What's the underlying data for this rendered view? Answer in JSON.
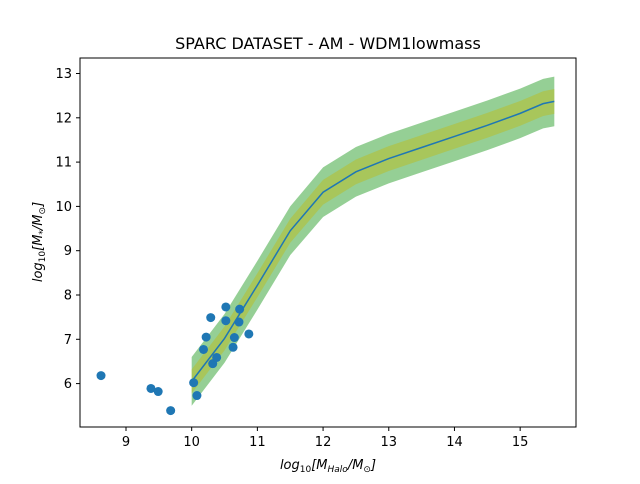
{
  "chart_data": {
    "type": "scatter",
    "title": "SPARC DATASET - AM - WDM1lowmass",
    "xlabel": {
      "prefix": "log",
      "prefix_sub": "10",
      "open": "[M",
      "num_sub": "Halo",
      "slash": "/M",
      "den_sub": "⊙",
      "close": "]"
    },
    "ylabel": {
      "prefix": "log",
      "prefix_sub": "10",
      "open": "[M",
      "num_sub": "*",
      "slash": "/M",
      "den_sub": "⊙",
      "close": "]"
    },
    "xlim": [
      8.3,
      15.85
    ],
    "ylim": [
      5.02,
      13.35
    ],
    "xticks": [
      9,
      10,
      11,
      12,
      13,
      14,
      15
    ],
    "yticks": [
      6,
      7,
      8,
      9,
      10,
      11,
      12,
      13
    ],
    "grid": false,
    "colors": {
      "points": "#1f77b4",
      "line": "#1f77b4",
      "band_outer": "#2ca02c",
      "band_inner": "#bcbd22"
    },
    "series": [
      {
        "kind": "scatter",
        "x": [
          8.62,
          9.38,
          9.49,
          9.68,
          10.03,
          10.08,
          10.18,
          10.22,
          10.29,
          10.32,
          10.38,
          10.52,
          10.52,
          10.63,
          10.65,
          10.72,
          10.73,
          10.87
        ],
        "y": [
          6.18,
          5.89,
          5.82,
          5.39,
          6.02,
          5.73,
          6.77,
          7.05,
          7.49,
          6.45,
          6.59,
          7.73,
          7.42,
          6.82,
          7.04,
          7.39,
          7.68,
          7.12
        ]
      },
      {
        "kind": "line",
        "x": [
          10.0,
          10.5,
          11.0,
          11.5,
          12.0,
          12.5,
          13.0,
          13.5,
          14.0,
          14.5,
          15.0,
          15.35,
          15.52
        ],
        "y": [
          6.05,
          7.02,
          8.22,
          9.45,
          10.32,
          10.78,
          11.08,
          11.33,
          11.58,
          11.83,
          12.1,
          12.32,
          12.37
        ],
        "band_inner": {
          "lower": [
            5.78,
            6.75,
            7.95,
            9.18,
            10.04,
            10.5,
            10.8,
            11.05,
            11.3,
            11.55,
            11.82,
            12.04,
            12.09
          ],
          "upper": [
            6.32,
            7.29,
            8.49,
            9.72,
            10.6,
            11.06,
            11.36,
            11.61,
            11.86,
            12.11,
            12.38,
            12.6,
            12.65
          ]
        },
        "band_outer": {
          "lower": [
            5.5,
            6.47,
            7.67,
            8.9,
            9.76,
            10.22,
            10.52,
            10.77,
            11.02,
            11.27,
            11.54,
            11.76,
            11.81
          ],
          "upper": [
            6.6,
            7.57,
            8.77,
            10.0,
            10.88,
            11.34,
            11.64,
            11.89,
            12.14,
            12.39,
            12.66,
            12.88,
            12.93
          ]
        }
      }
    ]
  }
}
